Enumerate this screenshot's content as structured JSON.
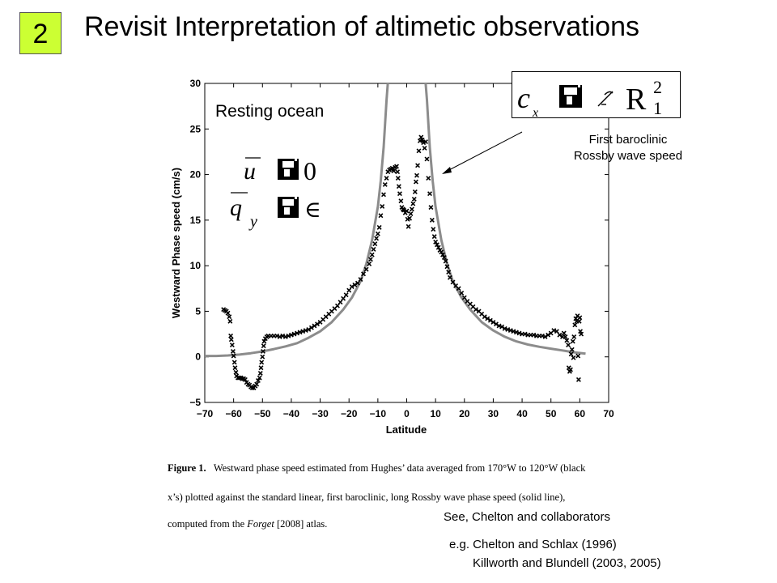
{
  "slide": {
    "number": "2",
    "title": "Revisit Interpretation of altimetic observations"
  },
  "annotations": {
    "resting_ocean": "Resting ocean",
    "rossby_line1": "First baroclinic",
    "rossby_line2": "Rossby wave speed"
  },
  "formulas": {
    "u_bar": "u",
    "u_rhs": "0",
    "qy_bar": "q",
    "qy_sub": "y",
    "qy_rhs": "∈",
    "cx": "c",
    "cx_sub": "x",
    "cx_rhs": "R",
    "cx_sup": "2",
    "cx_sub2": "1"
  },
  "caption": {
    "fig_label": "Figure 1.",
    "line1": "Westward phase speed estimated from Hughes’ data averaged from 170°W to 120°W (black",
    "line2": "x’s) plotted against the standard linear, first baroclinic, long Rossby wave phase speed (solid line),",
    "line3_pre": "computed from the ",
    "line3_ital": "Forget",
    "line3_post": " [2008] atlas."
  },
  "notes": {
    "see": "See, Chelton and collaborators",
    "eg1": "e.g. Chelton and Schlax (1996)",
    "eg2": "Killworth and Blundell (2003, 2005)"
  },
  "colors": {
    "slide_number_bg": "#ccff33",
    "curve": "#8c8c8c",
    "marker": "#000000"
  },
  "chart_data": {
    "type": "scatter",
    "xlabel": "Latitude",
    "ylabel": "Westward Phase speed (cm/s)",
    "xlim": [
      -70,
      70
    ],
    "ylim": [
      -5,
      30
    ],
    "xticks": [
      -70,
      -60,
      -50,
      -40,
      -30,
      -20,
      -10,
      0,
      10,
      20,
      30,
      40,
      50,
      60,
      70
    ],
    "yticks": [
      -5,
      0,
      5,
      10,
      15,
      20,
      25,
      30
    ],
    "series": [
      {
        "kind": "scatter",
        "marker": "x",
        "points": [
          [
            -63.5,
            5.2
          ],
          [
            -63,
            5.1
          ],
          [
            -62.5,
            5.0
          ],
          [
            -62,
            4.8
          ],
          [
            -61.5,
            4.4
          ],
          [
            -61.2,
            3.9
          ],
          [
            -61,
            2.3
          ],
          [
            -60.8,
            1.9
          ],
          [
            -60.5,
            1.3
          ],
          [
            -60.2,
            0.6
          ],
          [
            -60,
            0.1
          ],
          [
            -59.7,
            -0.6
          ],
          [
            -59.5,
            -1.2
          ],
          [
            -59.2,
            -1.7
          ],
          [
            -59,
            -2.1
          ],
          [
            -58.5,
            -2.3
          ],
          [
            -58,
            -2.3
          ],
          [
            -57.5,
            -2.3
          ],
          [
            -57,
            -2.4
          ],
          [
            -56.5,
            -2.4
          ],
          [
            -56,
            -2.5
          ],
          [
            -55.5,
            -2.8
          ],
          [
            -55,
            -3.0
          ],
          [
            -54.5,
            -3.1
          ],
          [
            -54,
            -3.3
          ],
          [
            -53.5,
            -3.4
          ],
          [
            -53,
            -3.4
          ],
          [
            -52.5,
            -3.2
          ],
          [
            -52,
            -3.0
          ],
          [
            -51.5,
            -2.6
          ],
          [
            -51,
            -2.3
          ],
          [
            -50.7,
            -1.8
          ],
          [
            -50.5,
            -1.2
          ],
          [
            -50.3,
            -0.6
          ],
          [
            -50,
            0.0
          ],
          [
            -49.8,
            0.6
          ],
          [
            -49.6,
            1.2
          ],
          [
            -49.4,
            1.7
          ],
          [
            -49,
            2.0
          ],
          [
            -48.5,
            2.2
          ],
          [
            -48,
            2.3
          ],
          [
            -47,
            2.3
          ],
          [
            -46,
            2.3
          ],
          [
            -45,
            2.3
          ],
          [
            -44,
            2.2
          ],
          [
            -43,
            2.3
          ],
          [
            -42,
            2.2
          ],
          [
            -41,
            2.3
          ],
          [
            -40,
            2.4
          ],
          [
            -39,
            2.5
          ],
          [
            -38,
            2.6
          ],
          [
            -37,
            2.7
          ],
          [
            -36,
            2.8
          ],
          [
            -35,
            2.9
          ],
          [
            -34,
            3.0
          ],
          [
            -33,
            3.2
          ],
          [
            -32,
            3.4
          ],
          [
            -31,
            3.6
          ],
          [
            -30,
            3.8
          ],
          [
            -29,
            4.1
          ],
          [
            -28,
            4.4
          ],
          [
            -27,
            4.7
          ],
          [
            -26,
            5.0
          ],
          [
            -25,
            5.3
          ],
          [
            -24,
            5.6
          ],
          [
            -23,
            6.0
          ],
          [
            -22,
            6.4
          ],
          [
            -21,
            6.8
          ],
          [
            -20,
            7.3
          ],
          [
            -19,
            7.7
          ],
          [
            -18,
            7.9
          ],
          [
            -17,
            8.1
          ],
          [
            -16,
            8.5
          ],
          [
            -15,
            9.1
          ],
          [
            -14,
            9.6
          ],
          [
            -13,
            10.2
          ],
          [
            -12.5,
            10.7
          ],
          [
            -12,
            11.2
          ],
          [
            -11.5,
            11.8
          ],
          [
            -11,
            12.4
          ],
          [
            -10.5,
            13.0
          ],
          [
            -10,
            13.5
          ],
          [
            -9.5,
            14.2
          ],
          [
            -9,
            15.5
          ],
          [
            -8.5,
            16.5
          ],
          [
            -8,
            17.8
          ],
          [
            -7.5,
            18.9
          ],
          [
            -7,
            19.6
          ],
          [
            -6.5,
            20.3
          ],
          [
            -6,
            20.5
          ],
          [
            -5.5,
            20.6
          ],
          [
            -5,
            20.7
          ],
          [
            -4.5,
            20.4
          ],
          [
            -4,
            20.8
          ],
          [
            -3.5,
            20.9
          ],
          [
            -3.2,
            20.3
          ],
          [
            -3,
            19.6
          ],
          [
            -2.7,
            18.7
          ],
          [
            -2.4,
            17.9
          ],
          [
            -2,
            17.1
          ],
          [
            -1.7,
            16.4
          ],
          [
            -1.3,
            16.2
          ],
          [
            -1,
            16.1
          ],
          [
            -0.5,
            15.8
          ],
          [
            0,
            16.0
          ],
          [
            0.3,
            15.1
          ],
          [
            0.6,
            14.3
          ],
          [
            1,
            15.2
          ],
          [
            1.4,
            15.7
          ],
          [
            1.8,
            16.2
          ],
          [
            2.2,
            16.8
          ],
          [
            2.6,
            17.3
          ],
          [
            2.9,
            18.1
          ],
          [
            3.2,
            19.2
          ],
          [
            3.5,
            19.9
          ],
          [
            3.8,
            21.0
          ],
          [
            4.2,
            22.6
          ],
          [
            4.6,
            23.7
          ],
          [
            5,
            24.1
          ],
          [
            5.4,
            23.8
          ],
          [
            5.8,
            23.5
          ],
          [
            6.2,
            22.9
          ],
          [
            6.6,
            23.6
          ],
          [
            7,
            21.7
          ],
          [
            7.5,
            19.6
          ],
          [
            8,
            17.9
          ],
          [
            8.4,
            16.4
          ],
          [
            8.8,
            15.0
          ],
          [
            9.2,
            14.0
          ],
          [
            9.6,
            13.2
          ],
          [
            10,
            12.6
          ],
          [
            10.5,
            12.3
          ],
          [
            11,
            12.0
          ],
          [
            11.5,
            11.7
          ],
          [
            12,
            11.5
          ],
          [
            12.5,
            11.2
          ],
          [
            13,
            10.9
          ],
          [
            13.5,
            10.5
          ],
          [
            14,
            9.9
          ],
          [
            14.5,
            9.3
          ],
          [
            15,
            8.7
          ],
          [
            16,
            8.2
          ],
          [
            17,
            7.8
          ],
          [
            18,
            7.5
          ],
          [
            19,
            7.0
          ],
          [
            20,
            6.5
          ],
          [
            21,
            6.1
          ],
          [
            22,
            5.8
          ],
          [
            23,
            5.5
          ],
          [
            24,
            5.2
          ],
          [
            25,
            5.0
          ],
          [
            26,
            4.7
          ],
          [
            27,
            4.4
          ],
          [
            28,
            4.2
          ],
          [
            29,
            4.0
          ],
          [
            30,
            3.8
          ],
          [
            31,
            3.6
          ],
          [
            32,
            3.4
          ],
          [
            33,
            3.3
          ],
          [
            34,
            3.1
          ],
          [
            35,
            3.0
          ],
          [
            36,
            2.9
          ],
          [
            37,
            2.8
          ],
          [
            38,
            2.7
          ],
          [
            39,
            2.6
          ],
          [
            40,
            2.5
          ],
          [
            41,
            2.5
          ],
          [
            42,
            2.4
          ],
          [
            43,
            2.4
          ],
          [
            44,
            2.4
          ],
          [
            45,
            2.3
          ],
          [
            46,
            2.3
          ],
          [
            47,
            2.3
          ],
          [
            48,
            2.2
          ],
          [
            49,
            2.4
          ],
          [
            50,
            2.6
          ],
          [
            51,
            2.9
          ],
          [
            52,
            2.8
          ],
          [
            53,
            2.4
          ],
          [
            54,
            2.2
          ],
          [
            54.5,
            2.6
          ],
          [
            55,
            2.2
          ],
          [
            55.5,
            1.8
          ],
          [
            56,
            1.3
          ],
          [
            56.2,
            -1.2
          ],
          [
            56.5,
            -1.6
          ],
          [
            56.8,
            -1.4
          ],
          [
            57,
            0.3
          ],
          [
            57.3,
            0.8
          ],
          [
            57.6,
            1.7
          ],
          [
            57.8,
            -0.1
          ],
          [
            58,
            2.2
          ],
          [
            58.3,
            3.5
          ],
          [
            58.6,
            4.2
          ],
          [
            58.9,
            3.9
          ],
          [
            59.2,
            4.5
          ],
          [
            59.4,
            0.1
          ],
          [
            59.6,
            -2.5
          ],
          [
            59.8,
            3.9
          ],
          [
            60,
            4.3
          ],
          [
            60.2,
            2.8
          ],
          [
            60.5,
            2.5
          ]
        ]
      },
      {
        "kind": "line",
        "name": "",
        "points": [
          [
            -70,
            0.1
          ],
          [
            -66,
            0.1
          ],
          [
            -62,
            0.15
          ],
          [
            -58,
            0.25
          ],
          [
            -54,
            0.4
          ],
          [
            -50,
            0.6
          ],
          [
            -46,
            0.85
          ],
          [
            -42,
            1.15
          ],
          [
            -38,
            1.5
          ],
          [
            -34,
            2.1
          ],
          [
            -30,
            2.8
          ],
          [
            -26,
            3.8
          ],
          [
            -22,
            5.2
          ],
          [
            -19,
            6.5
          ],
          [
            -16,
            8.3
          ],
          [
            -14,
            10.2
          ],
          [
            -12,
            12.8
          ],
          [
            -10,
            16.5
          ],
          [
            -9,
            19.3
          ],
          [
            -8,
            23
          ],
          [
            -7,
            28.2
          ],
          [
            -6.3,
            31
          ],
          [
            -6,
            33
          ],
          null,
          [
            6,
            33
          ],
          [
            6.3,
            31
          ],
          [
            7,
            28.2
          ],
          [
            8,
            23
          ],
          [
            9,
            19.3
          ],
          [
            10,
            16.5
          ],
          [
            12,
            12.8
          ],
          [
            14,
            10.2
          ],
          [
            16,
            8.3
          ],
          [
            19,
            6.5
          ],
          [
            22,
            5.2
          ],
          [
            26,
            3.8
          ],
          [
            30,
            2.9
          ],
          [
            34,
            2.2
          ],
          [
            38,
            1.7
          ],
          [
            42,
            1.35
          ],
          [
            46,
            1.1
          ],
          [
            50,
            0.9
          ],
          [
            54,
            0.7
          ],
          [
            58,
            0.5
          ],
          [
            62,
            0.35
          ]
        ]
      }
    ],
    "annotations": [
      "Resting ocean",
      "First baroclinic",
      "Rossby wave speed"
    ]
  }
}
